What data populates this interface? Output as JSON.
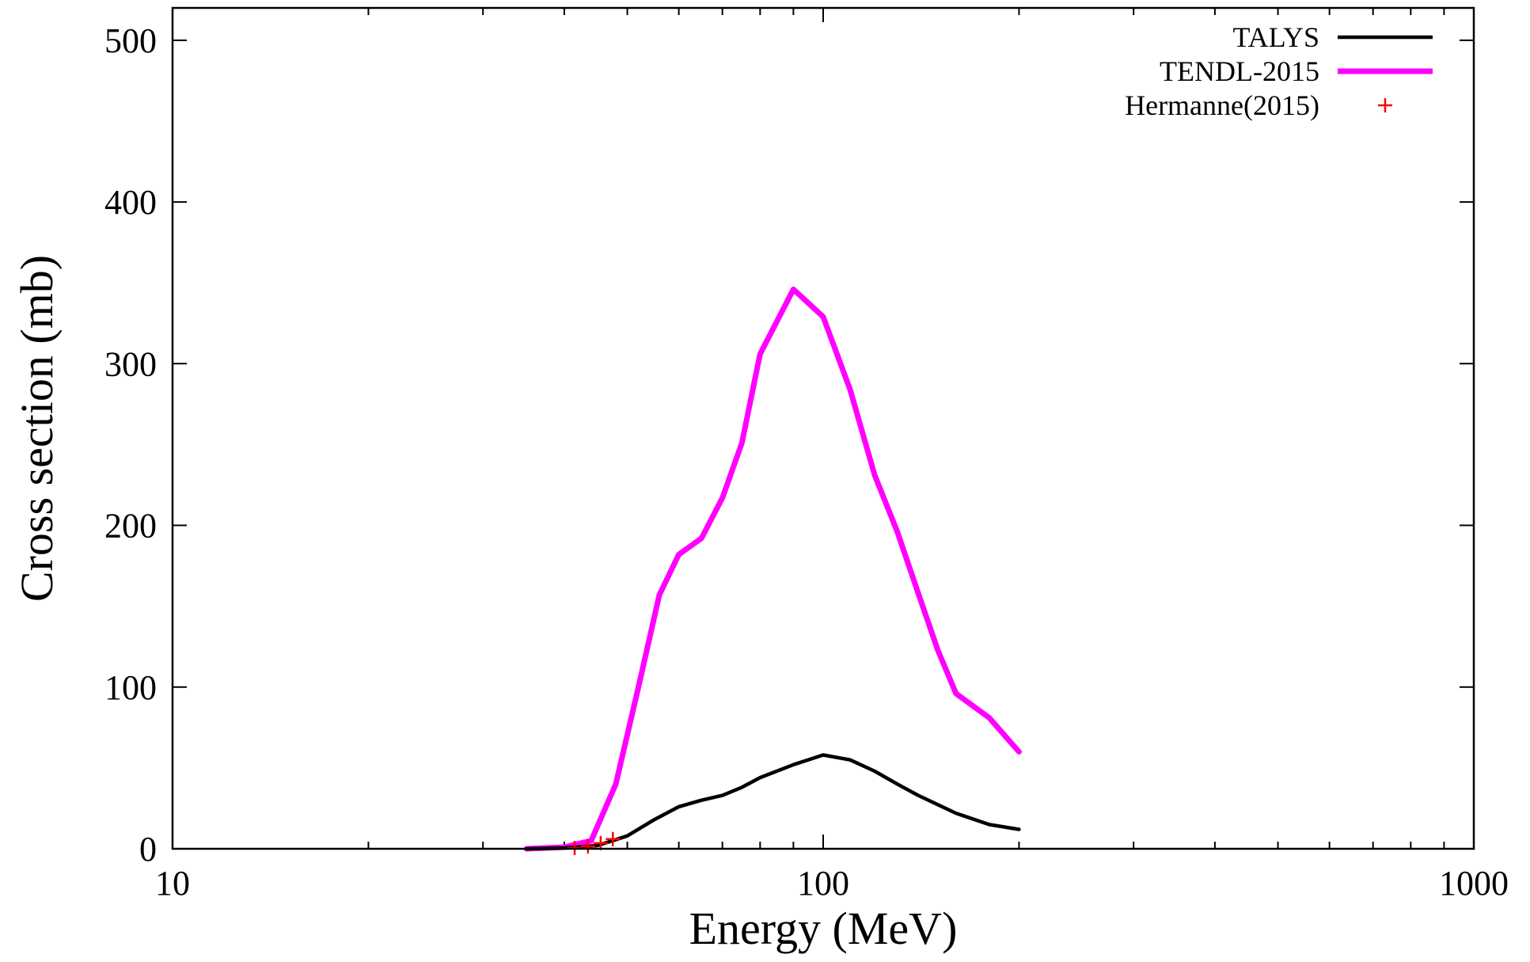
{
  "chart_data": {
    "type": "line",
    "title": "",
    "xlabel": "Energy (MeV)",
    "ylabel": "Cross section (mb)",
    "xscale": "log",
    "xlim": [
      10,
      1000
    ],
    "ylim": [
      0,
      520
    ],
    "x_ticks": [
      10,
      100,
      1000
    ],
    "x_tick_labels": [
      "10",
      "100",
      "1000"
    ],
    "y_ticks": [
      0,
      100,
      200,
      300,
      400,
      500
    ],
    "y_tick_labels": [
      "0",
      "100",
      "200",
      "300",
      "400",
      "500"
    ],
    "grid": false,
    "legend": {
      "position": "top-right",
      "entries": [
        "TALYS",
        "TENDL-2015",
        "Hermanne(2015)"
      ]
    },
    "series": [
      {
        "name": "TALYS",
        "style": "line",
        "color": "#000000",
        "x": [
          35,
          40,
          45,
          50,
          55,
          60,
          65,
          70,
          75,
          80,
          90,
          100,
          110,
          120,
          130,
          140,
          160,
          180,
          200
        ],
        "y": [
          0,
          0.5,
          2,
          8,
          18,
          26,
          30,
          33,
          38,
          44,
          52,
          58,
          55,
          48,
          40,
          33,
          22,
          15,
          12
        ]
      },
      {
        "name": "TENDL-2015",
        "style": "line",
        "color": "#ff00ff",
        "x": [
          35,
          40,
          44,
          48,
          52,
          56,
          60,
          65,
          70,
          75,
          80,
          90,
          100,
          110,
          120,
          130,
          140,
          150,
          160,
          180,
          200
        ],
        "y": [
          0,
          1,
          5,
          40,
          100,
          157,
          182,
          192,
          217,
          251,
          306,
          346,
          329,
          284,
          231,
          196,
          158,
          123,
          96,
          81,
          60
        ]
      },
      {
        "name": "Hermanne(2015)",
        "style": "points",
        "marker": "+",
        "color": "#ff0000",
        "x": [
          41.5,
          43.5,
          45.5,
          47.5
        ],
        "y": [
          0.5,
          1.5,
          3.5,
          6
        ]
      }
    ]
  }
}
